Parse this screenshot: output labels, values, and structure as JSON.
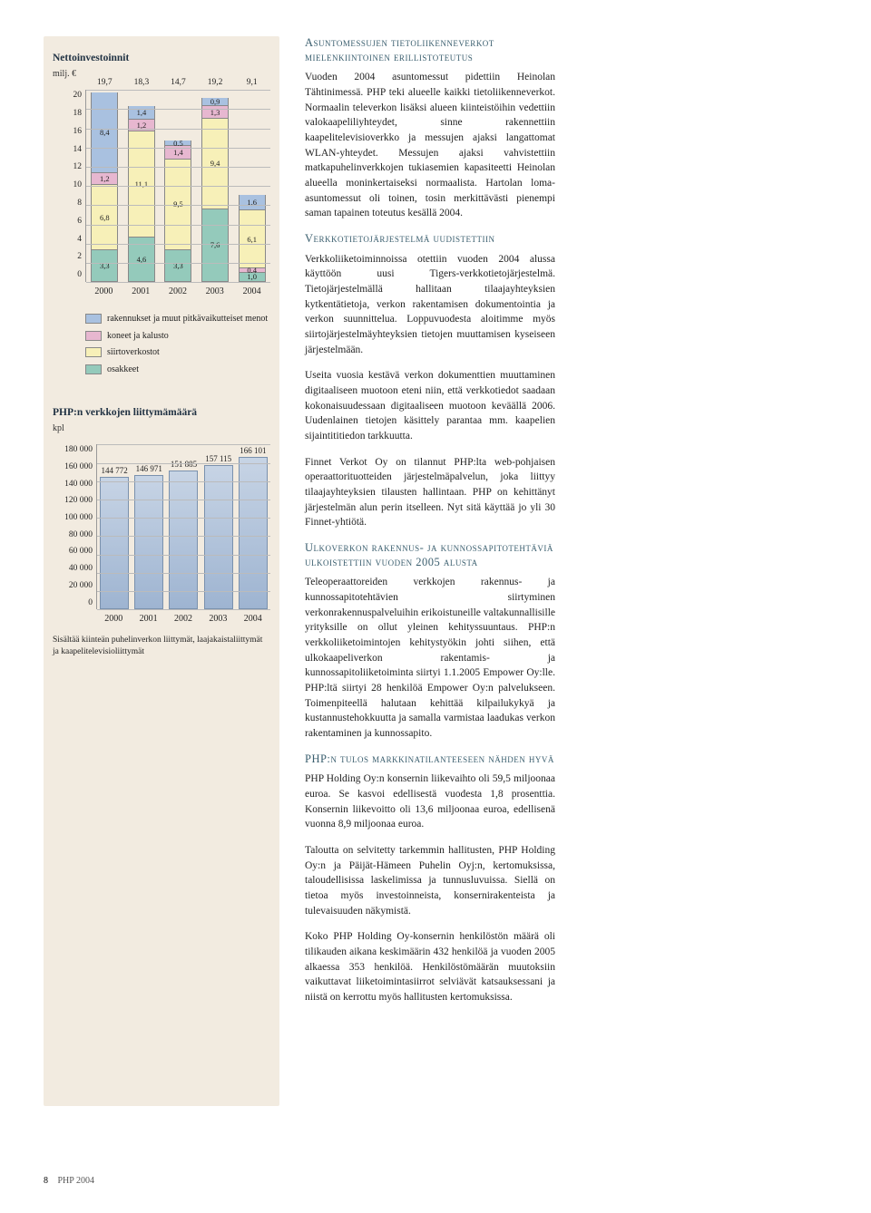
{
  "chart1": {
    "title": "Nettoinvestoinnit",
    "unit": "milj. €",
    "ylim": [
      0,
      20
    ],
    "ytick_step": 2,
    "yticks": [
      "20",
      "18",
      "16",
      "14",
      "12",
      "10",
      "8",
      "6",
      "4",
      "2",
      "0"
    ],
    "categories": [
      "2000",
      "2001",
      "2002",
      "2003",
      "2004"
    ],
    "series_colors": {
      "rakennukset": "#a9c1e0",
      "koneet": "#e7b7d0",
      "siirtoverkostot": "#f7f0b8",
      "osakkeet": "#94cabb"
    },
    "totals": [
      "19,7",
      "18,3",
      "14,7",
      "19,2",
      "9,1"
    ],
    "stacks": [
      [
        {
          "v": 8.4,
          "l": "8,4",
          "c": "rakennukset"
        },
        {
          "v": 1.2,
          "l": "1,2",
          "c": "koneet"
        },
        {
          "v": 6.8,
          "l": "6,8",
          "c": "siirtoverkostot"
        },
        {
          "v": 3.3,
          "l": "3,3",
          "c": "osakkeet"
        }
      ],
      [
        {
          "v": 1.4,
          "l": "1,4",
          "c": "rakennukset"
        },
        {
          "v": 1.2,
          "l": "1,2",
          "c": "koneet"
        },
        {
          "v": 11.1,
          "l": "11,1",
          "c": "siirtoverkostot"
        },
        {
          "v": 4.6,
          "l": "4,6",
          "c": "osakkeet"
        }
      ],
      [
        {
          "v": 0.5,
          "l": "0,5",
          "c": "rakennukset"
        },
        {
          "v": 1.4,
          "l": "1,4",
          "c": "koneet"
        },
        {
          "v": 9.5,
          "l": "9,5",
          "c": "siirtoverkostot"
        },
        {
          "v": 3.3,
          "l": "3,3",
          "c": "osakkeet"
        }
      ],
      [
        {
          "v": 0.9,
          "l": "0,9",
          "c": "rakennukset"
        },
        {
          "v": 1.3,
          "l": "1,3",
          "c": "koneet"
        },
        {
          "v": 9.4,
          "l": "9,4",
          "c": "siirtoverkostot"
        },
        {
          "v": 7.6,
          "l": "7,6",
          "c": "osakkeet"
        }
      ],
      [
        {
          "v": 1.6,
          "l": "1,6",
          "c": "rakennukset"
        },
        {
          "v": 6.1,
          "l": "6,1",
          "c": "siirtoverkostot"
        },
        {
          "v": 0.4,
          "l": "0,4",
          "c": "koneet"
        },
        {
          "v": 1.0,
          "l": "1,0",
          "c": "osakkeet"
        }
      ]
    ],
    "legend": [
      {
        "c": "rakennukset",
        "t": "rakennukset ja muut pitkävaikutteiset menot"
      },
      {
        "c": "koneet",
        "t": "koneet ja kalusto"
      },
      {
        "c": "siirtoverkostot",
        "t": "siirtoverkostot"
      },
      {
        "c": "osakkeet",
        "t": "osakkeet"
      }
    ]
  },
  "chart2": {
    "title": "PHP:n verkkojen liittymämäärä",
    "unit": "kpl",
    "ylim": [
      0,
      180000
    ],
    "ytick_step": 20000,
    "yticks": [
      "180 000",
      "160 000",
      "140 000",
      "120 000",
      "100 000",
      "80 000",
      "60 000",
      "40 000",
      "20 000",
      "0"
    ],
    "categories": [
      "2000",
      "2001",
      "2002",
      "2003",
      "2004"
    ],
    "values": [
      144772,
      146971,
      151885,
      157115,
      166101
    ],
    "labels": [
      "144 772",
      "146 971",
      "151 885",
      "157 115",
      "166 101"
    ],
    "bar_color": "#a4bbd6",
    "footnote": "Sisältää kiinteän puhelinverkon liittymät, laajakaistaliittymät ja kaapelitelevisioliittymät"
  },
  "text": {
    "h1": "Asuntomessujen tietoliikenneverkot mielenkiintoinen erillistoteutus",
    "p1": "Vuoden 2004 asuntomessut pidettiin Heinolan Tähtinimessä. PHP teki alueelle kaikki tietoliikenneverkot. Normaalin televerkon lisäksi alueen kiinteistöihin vedettiin valokaapeliliyhteydet, sinne rakennettiin kaapelitelevisioverkko ja messujen ajaksi langattomat WLAN-yhteydet. Messujen ajaksi vahvistettiin matkapuhelinverkkojen tukiasemien kapasiteetti Heinolan alueella moninkertaiseksi normaalista. Hartolan loma-asuntomessut oli toinen, tosin merkittävästi pienempi saman tapainen toteutus kesällä 2004.",
    "h2": "Verkkotietojärjestelmä uudistettiin",
    "p2": "Verkkoliiketoiminnoissa otettiin vuoden 2004 alussa käyttöön uusi Tigers-verkkotietojärjestelmä. Tietojärjestelmällä hallitaan tilaajayhteyksien kytkentätietoja, verkon rakentamisen dokumentointia ja verkon suunnittelua. Loppuvuodesta aloitimme myös siirtojärjestelmäyhteyksien tietojen muuttamisen kyseiseen järjestelmään.",
    "p3": "Useita vuosia kestävä verkon dokumenttien muuttaminen digitaaliseen muotoon eteni niin, että verkkotiedot saadaan kokonaisuudessaan digitaaliseen muotoon keväällä 2006. Uudenlainen tietojen käsittely parantaa mm. kaapelien sijaintititiedon tarkkuutta.",
    "p4": "Finnet Verkot Oy on tilannut PHP:lta web-pohjaisen operaattorituotteiden järjestelmäpalvelun, joka liittyy tilaajayhteyksien tilausten hallintaan. PHP on kehittänyt järjestelmän alun perin itselleen. Nyt sitä käyttää jo yli 30 Finnet-yhtiötä.",
    "h3": "Ulkoverkon rakennus- ja kunnossapitotehtäviä ulkoistettiin vuoden 2005 alusta",
    "p5": "Teleoperaattoreiden verkkojen rakennus- ja kunnossapitotehtävien siirtyminen verkonrakennuspalveluihin erikoistuneille valtakunnallisille yrityksille on ollut yleinen kehityssuuntaus. PHP:n verkkoliiketoimintojen kehitystyökin johti siihen, että ulkokaapeliverkon rakentamis- ja kunnossapitoliiketoiminta siirtyi 1.1.2005 Empower Oy:lle. PHP:ltä siirtyi 28 henkilöä Empower Oy:n palvelukseen. Toimenpiteellä halutaan kehittää kilpailukykyä ja kustannustehokkuutta ja samalla varmistaa laadukas verkon rakentaminen ja kunnossapito.",
    "h4": "PHP:n tulos markkinatilanteeseen nähden hyvä",
    "p6": "PHP Holding Oy:n konsernin liikevaihto oli 59,5 miljoonaa euroa. Se kasvoi edellisestä vuodesta 1,8 prosenttia. Konsernin liikevoitto oli 13,6 miljoonaa euroa, edellisenä vuonna 8,9 miljoonaa euroa.",
    "p7": "Taloutta on selvitetty tarkemmin hallitusten, PHP Holding Oy:n ja Päijät-Hämeen Puhelin Oyj:n, kertomuksissa, taloudellisissa laskelimissa ja tunnusluvuissa. Siellä on tietoa myös investoinneista, konsernirakenteista ja tulevaisuuden näkymistä.",
    "p8": "Koko PHP Holding Oy-konsernin henkilöstön määrä oli tilikauden aikana keskimäärin 432 henkilöä ja vuoden 2005 alkaessa 353 henkilöä. Henkilöstömäärän muutoksiin vaikuttavat liiketoimintasiirrot selviävät katsauksessani ja niistä on kerrottu myös hallitusten kertomuksissa."
  },
  "footer": {
    "page": "8",
    "label": "PHP 2004"
  }
}
